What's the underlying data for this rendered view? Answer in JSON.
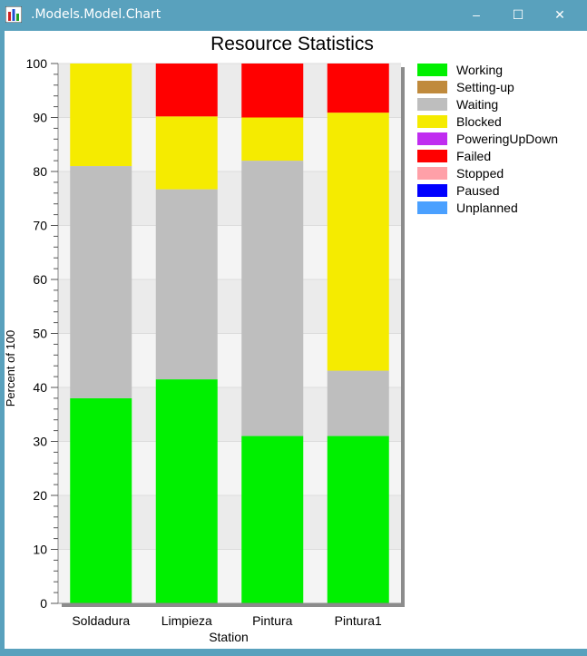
{
  "window": {
    "title": ".Models.Model.Chart",
    "minimize_glyph": "–",
    "maximize_glyph": "☐",
    "close_glyph": "✕",
    "icon": "chart-app-icon"
  },
  "colors": {
    "titlebar": "#59a1bd"
  },
  "chart_data": {
    "type": "bar",
    "stacked": true,
    "title": "Resource Statistics",
    "xlabel": "Station",
    "ylabel": "Percent of 100",
    "ylim": [
      0,
      100
    ],
    "yticks": [
      0,
      10,
      20,
      30,
      40,
      50,
      60,
      70,
      80,
      90,
      100
    ],
    "grid": true,
    "legend_position": "right",
    "categories": [
      "Soldadura",
      "Limpieza",
      "Pintura",
      "Pintura1"
    ],
    "series": [
      {
        "name": "Working",
        "color": "#00f000",
        "values": [
          38,
          41.5,
          31,
          31
        ]
      },
      {
        "name": "Setting-up",
        "color": "#c08a3c",
        "values": [
          0,
          0,
          0,
          0
        ]
      },
      {
        "name": "Waiting",
        "color": "#bebebe",
        "values": [
          43,
          35.2,
          51,
          12.1
        ]
      },
      {
        "name": "Blocked",
        "color": "#f5eb00",
        "values": [
          19,
          13.5,
          8,
          47.8
        ]
      },
      {
        "name": "PoweringUpDown",
        "color": "#c02cf0",
        "values": [
          0,
          0,
          0,
          0
        ]
      },
      {
        "name": "Failed",
        "color": "#ff0000",
        "values": [
          0,
          9.8,
          10,
          9.1
        ]
      },
      {
        "name": "Stopped",
        "color": "#ffa0a8",
        "values": [
          0,
          0,
          0,
          0
        ]
      },
      {
        "name": "Paused",
        "color": "#0000ff",
        "values": [
          0,
          0,
          0,
          0
        ]
      },
      {
        "name": "Unplanned",
        "color": "#4aa0ff",
        "values": [
          0,
          0,
          0,
          0
        ]
      }
    ]
  }
}
